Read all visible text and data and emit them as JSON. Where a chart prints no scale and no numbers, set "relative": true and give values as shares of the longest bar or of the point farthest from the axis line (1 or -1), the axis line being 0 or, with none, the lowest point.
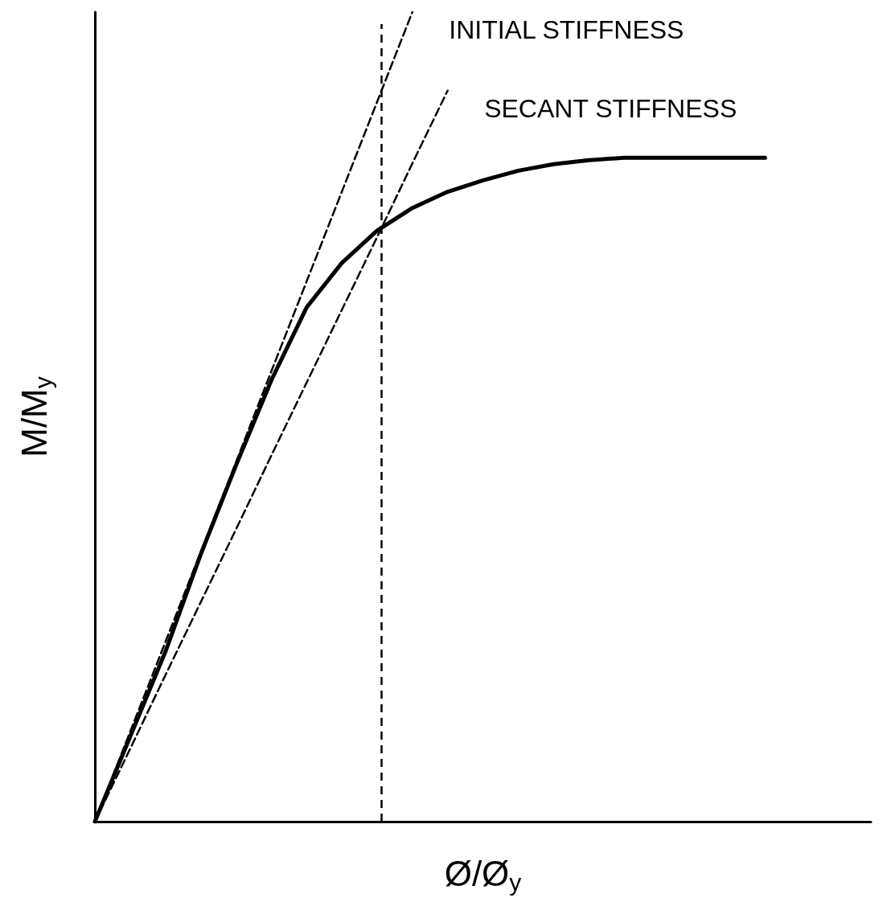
{
  "chart_data": {
    "type": "line",
    "relative": true,
    "xlabel": "Ø/Ø$_{y}$",
    "ylabel": "M/M$_{y}$",
    "categories": [
      null,
      null,
      null,
      null,
      null,
      null,
      null,
      null,
      null,
      null,
      null,
      null,
      null,
      null,
      null,
      null,
      null,
      null,
      null,
      null,
      null,
      null,
      null
    ],
    "grid": false,
    "marker": "none",
    "series": [
      {
        "color": "#000000",
        "line_style": "solid",
        "values": [
          0,
          0.105,
          0.21,
          0.33,
          0.44,
          0.545,
          0.635,
          0.69,
          0.73,
          0.758,
          0.778,
          0.792,
          0.804,
          0.812,
          0.817,
          0.82,
          0.82,
          0.82,
          0.82,
          0.82,
          null,
          null,
          null
        ]
      },
      {
        "name": "INITIAL STIFFNESS",
        "color": "#000000",
        "line_style": "dashed",
        "values": [
          0,
          0.111,
          0.222,
          0.333,
          0.444,
          0.556,
          0.667,
          0.778,
          0.889,
          1,
          null,
          null,
          null,
          null,
          null,
          null,
          null,
          null,
          null,
          null,
          null,
          null,
          null
        ]
      },
      {
        "name": "SECANT STIFFNESS",
        "color": "#000000",
        "line_style": "dashed",
        "values": [
          0,
          0.09,
          0.181,
          0.271,
          0.361,
          0.452,
          0.542,
          0.632,
          0.722,
          0.813,
          0.903,
          null,
          null,
          null,
          null,
          null,
          null,
          null,
          null,
          null,
          null,
          null,
          null
        ]
      }
    ]
  }
}
